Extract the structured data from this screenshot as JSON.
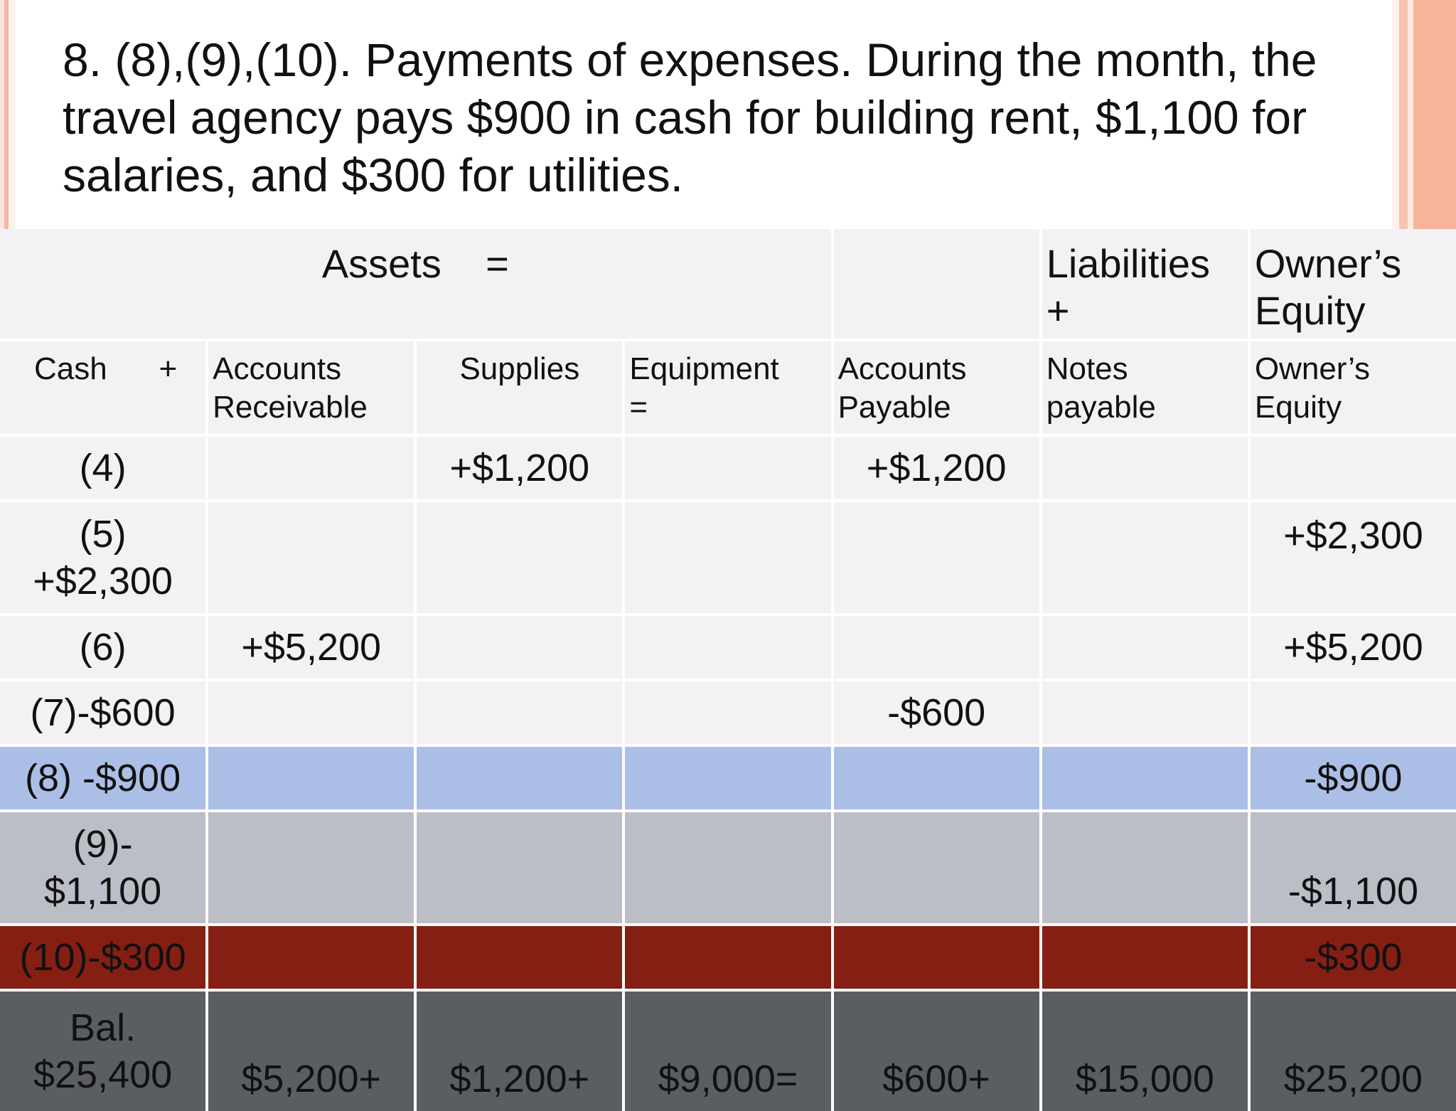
{
  "slide": {
    "title": "8. (8),(9),(10). Payments of expenses. During the month, the travel agency pays $900 in cash for building rent, $1,100 for salaries, and $300 for utilities."
  },
  "table": {
    "header_top": {
      "assets": "Assets    =",
      "blank": "",
      "liabilities": [
        "Liabilities",
        "+"
      ],
      "owners_equity": [
        "Owner’s",
        "Equity"
      ]
    },
    "header_cols": {
      "cash": "Cash",
      "cash_plus": "+",
      "accounts_receivable": [
        "Accounts",
        "Receivable"
      ],
      "supplies": "Supplies",
      "equipment": [
        "Equipment",
        "="
      ],
      "accounts_payable": [
        "Accounts",
        "Payable"
      ],
      "notes_payable": [
        "Notes",
        "payable"
      ],
      "owners_equity": [
        "Owner’s",
        "Equity"
      ]
    },
    "rows": [
      {
        "c0": [
          "(4)"
        ],
        "c1": "",
        "c2": "+$1,200",
        "c3": "",
        "c4": "+$1,200",
        "c5": "",
        "c6": ""
      },
      {
        "c0": [
          "(5)",
          "+$2,300"
        ],
        "c1": "",
        "c2": "",
        "c3": "",
        "c4": "",
        "c5": "",
        "c6": "+$2,300"
      },
      {
        "c0": [
          "(6)"
        ],
        "c1": "+$5,200",
        "c2": "",
        "c3": "",
        "c4": "",
        "c5": "",
        "c6": "+$5,200"
      },
      {
        "c0": [
          "(7)-$600"
        ],
        "c1": "",
        "c2": "",
        "c3": "",
        "c4": "-$600",
        "c5": "",
        "c6": ""
      },
      {
        "c0": [
          "(8) -$900"
        ],
        "c1": "",
        "c2": "",
        "c3": "",
        "c4": "",
        "c5": "",
        "c6": "-$900"
      },
      {
        "c0": [
          "(9)-",
          "$1,100"
        ],
        "c1": "",
        "c2": "",
        "c3": "",
        "c4": "",
        "c5": "",
        "c6": "-$1,100"
      },
      {
        "c0": [
          "(10)-$300"
        ],
        "c1": "",
        "c2": "",
        "c3": "",
        "c4": "",
        "c5": "",
        "c6": "-$300"
      },
      {
        "c0": [
          "Bal.",
          "$25,400"
        ],
        "c1": "$5,200+",
        "c2": "$1,200+",
        "c3": "$9,000=",
        "c4": "$600+",
        "c5": "$15,000",
        "c6": "$25,200"
      }
    ],
    "colors": {
      "row_default": "#f2f2f4",
      "row_8_blue": "#abbfe6",
      "row_9_gray": "#bbbec7",
      "row_10_red": "#851f13",
      "row_balance_dark": "#5a5e62"
    }
  }
}
